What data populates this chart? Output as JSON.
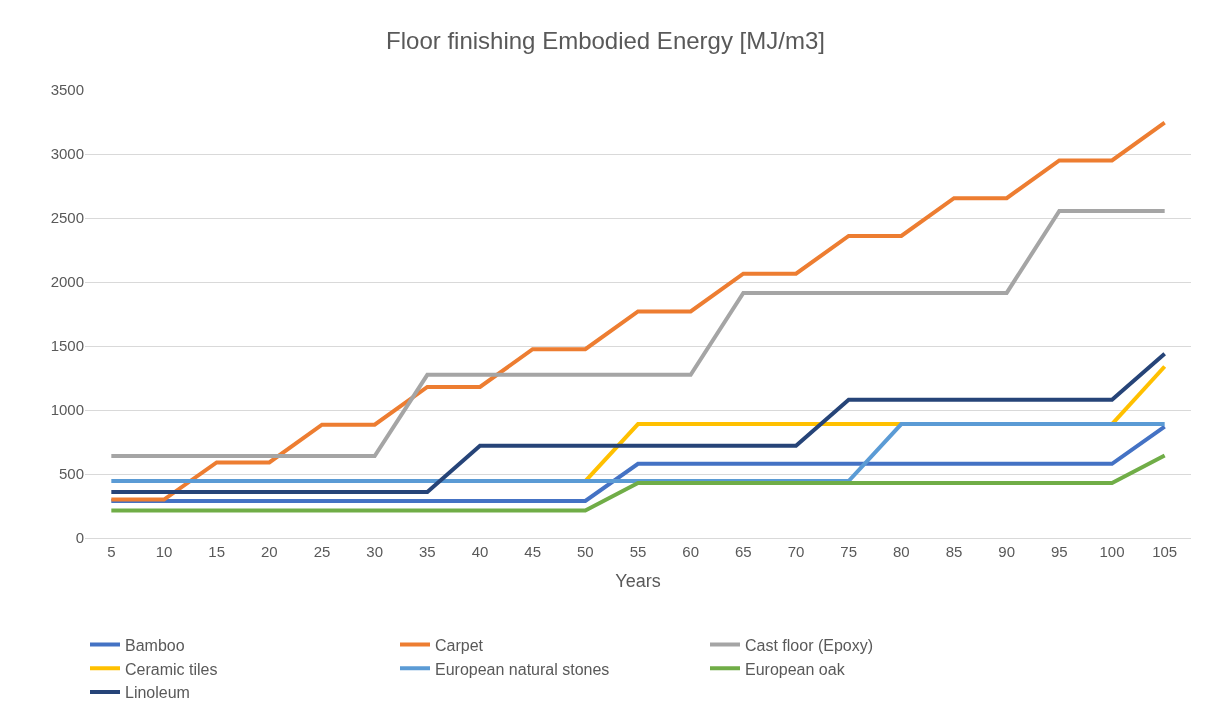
{
  "chart_data": {
    "type": "line",
    "title": "Floor finishing Embodied Energy [MJ/m3]",
    "xlabel": "Years",
    "categories": [
      "5",
      "10",
      "15",
      "20",
      "25",
      "30",
      "35",
      "40",
      "45",
      "50",
      "55",
      "60",
      "65",
      "70",
      "75",
      "80",
      "85",
      "90",
      "95",
      "100",
      "105"
    ],
    "series": [
      {
        "name": "Bamboo",
        "color": "#4472c4",
        "values": [
          290,
          290,
          290,
          290,
          290,
          290,
          290,
          290,
          290,
          290,
          580,
          580,
          580,
          580,
          580,
          580,
          580,
          580,
          580,
          580,
          870
        ]
      },
      {
        "name": "Carpet",
        "color": "#ed7d31",
        "values": [
          300,
          300,
          590,
          590,
          885,
          885,
          1180,
          1180,
          1475,
          1475,
          1770,
          1770,
          2065,
          2065,
          2360,
          2360,
          2655,
          2655,
          2950,
          2950,
          3245
        ]
      },
      {
        "name": "Cast floor (Epoxy)",
        "color": "#a5a5a5",
        "values": [
          640,
          640,
          640,
          640,
          640,
          640,
          1275,
          1275,
          1275,
          1275,
          1275,
          1275,
          1915,
          1915,
          1915,
          1915,
          1915,
          1915,
          2555,
          2555,
          2555
        ]
      },
      {
        "name": "Ceramic tiles",
        "color": "#ffc000",
        "values": [
          null,
          null,
          null,
          null,
          null,
          null,
          null,
          null,
          null,
          445,
          890,
          890,
          890,
          890,
          890,
          890,
          null,
          null,
          null,
          890,
          1340
        ]
      },
      {
        "name": "European natural stones",
        "color": "#5b9bd5",
        "values": [
          445,
          445,
          445,
          445,
          445,
          445,
          445,
          445,
          445,
          445,
          445,
          445,
          445,
          445,
          445,
          890,
          890,
          890,
          890,
          890,
          890
        ]
      },
      {
        "name": "European oak",
        "color": "#70ad47",
        "values": [
          215,
          215,
          215,
          215,
          215,
          215,
          215,
          215,
          215,
          215,
          430,
          430,
          430,
          430,
          430,
          430,
          430,
          430,
          430,
          430,
          645
        ]
      },
      {
        "name": "Linoleum",
        "color": "#264478",
        "values": [
          360,
          360,
          360,
          360,
          360,
          360,
          360,
          720,
          720,
          720,
          720,
          720,
          720,
          720,
          1080,
          1080,
          1080,
          1080,
          1080,
          1080,
          1440
        ]
      }
    ],
    "ylim": [
      0,
      3500
    ],
    "yticks": [
      0,
      500,
      1000,
      1500,
      2000,
      2500,
      3000,
      3500
    ],
    "grid": "y",
    "legend": "bottom",
    "marker": "none",
    "line_style": "solid"
  }
}
